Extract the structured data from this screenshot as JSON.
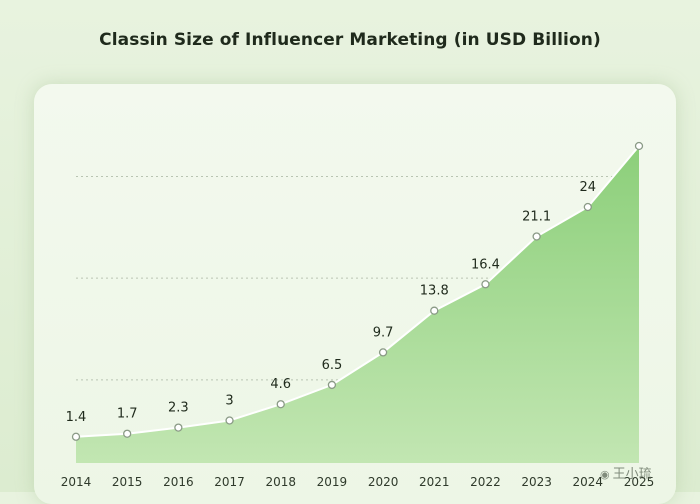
{
  "chart_data": {
    "type": "area",
    "title": "Classin  Size of Influencer Marketing (in USD Billion)",
    "xlabel": "",
    "ylabel": "",
    "categories": [
      "2014",
      "2015",
      "2016",
      "2017",
      "2018",
      "2019",
      "2020",
      "2021",
      "2022",
      "2023",
      "2024",
      "2025"
    ],
    "values": [
      1.4,
      1.7,
      2.3,
      3,
      4.6,
      6.5,
      9.7,
      13.8,
      16.4,
      21.1,
      24,
      30
    ],
    "data_labels": [
      "1.4",
      "1.7",
      "2.3",
      "3",
      "4.6",
      "6.5",
      "9.7",
      "13.8",
      "16.4",
      "21.1",
      "24",
      ""
    ],
    "ylim": [
      0,
      30
    ],
    "grid": true,
    "colors": {
      "fill_top": "#8ccf7a",
      "fill_bottom": "#c2e6b2",
      "line": "#ffffff",
      "marker_stroke": "#8a9a86",
      "grid": "#b9c4b2",
      "text": "#1f2a1c"
    }
  },
  "watermark": {
    "icon": "weibo-icon",
    "text": "王小琉"
  }
}
